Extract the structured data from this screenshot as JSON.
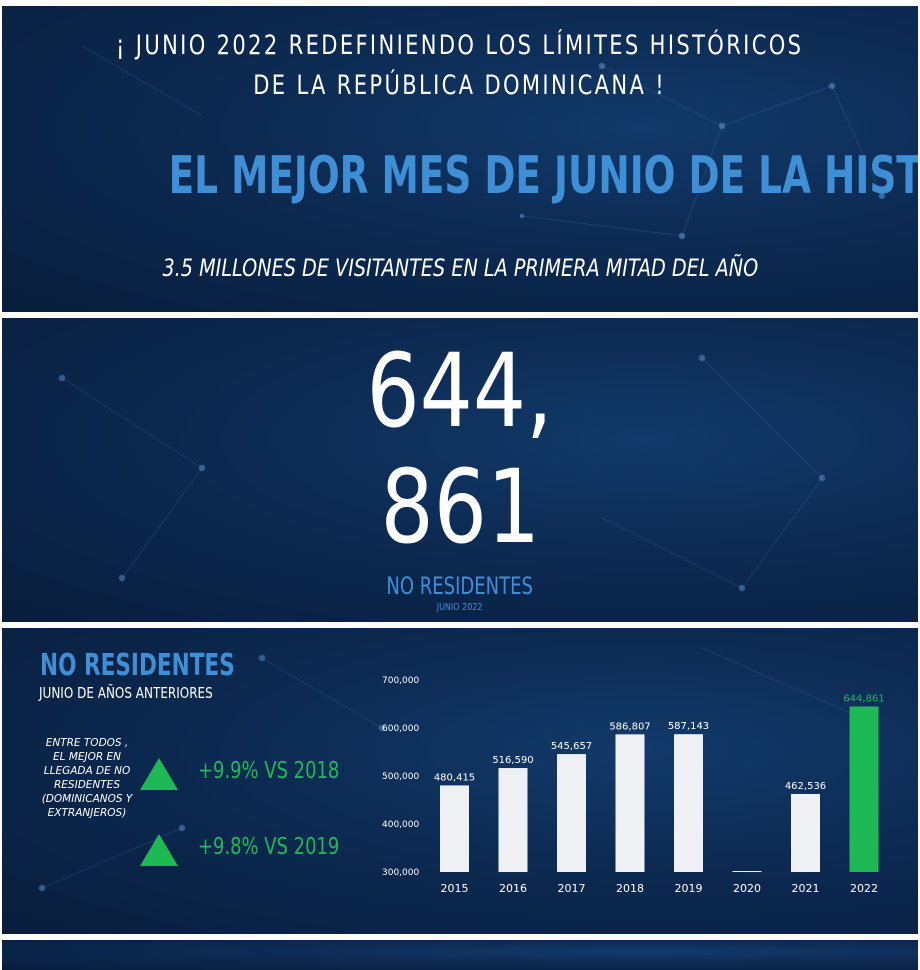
{
  "header": {
    "line1": "¡ JUNIO 2022 REDEFINIENDO LOS LÍMITES HISTÓRICOS",
    "line2": "DE LA REPÚBLICA DOMINICANA !",
    "title": "EL MEJOR MES DE JUNIO DE LA HISTORIA",
    "subtitle": "3.5 MILLONES DE VISITANTES EN LA PRIMERA MITAD DEL AÑO"
  },
  "highlight": {
    "number_line1": "644,",
    "number_line2": "861",
    "label": "NO RESIDENTES",
    "period": "JUNIO 2022"
  },
  "comparison": {
    "heading": "NO RESIDENTES",
    "subheading": "JUNIO DE AÑOS ANTERIORES",
    "note_lines": [
      "ENTRE TODOS ,",
      "EL MEJOR EN",
      "LLEGADA DE NO",
      "RESIDENTES",
      "(DOMINICANOS Y",
      "EXTRANJEROS)"
    ],
    "stats": [
      {
        "text": "+9.9% VS 2018"
      },
      {
        "text": "+9.8% VS 2019"
      }
    ],
    "colors": {
      "accent": "#1db954",
      "title_blue": "#3f8fd6",
      "bar": "#eef0f4"
    }
  },
  "chart_data": {
    "type": "bar",
    "categories": [
      "2015",
      "2016",
      "2017",
      "2018",
      "2019",
      "2020",
      "2021",
      "2022"
    ],
    "values": [
      480415,
      516590,
      545657,
      586807,
      587143,
      300000,
      462536,
      644861
    ],
    "value_labels": [
      "480,415",
      "516,590",
      "545,657",
      "586,807",
      "587,143",
      "",
      "462,536",
      "644,861"
    ],
    "highlight_index": 7,
    "ylim": [
      300000,
      700000
    ],
    "yticks": [
      300000,
      400000,
      500000,
      600000,
      700000
    ],
    "ytick_labels": [
      "300,000",
      "400,000",
      "500,000",
      "600,000",
      "700,000"
    ],
    "grid": false,
    "title": "",
    "xlabel": "",
    "ylabel": ""
  }
}
